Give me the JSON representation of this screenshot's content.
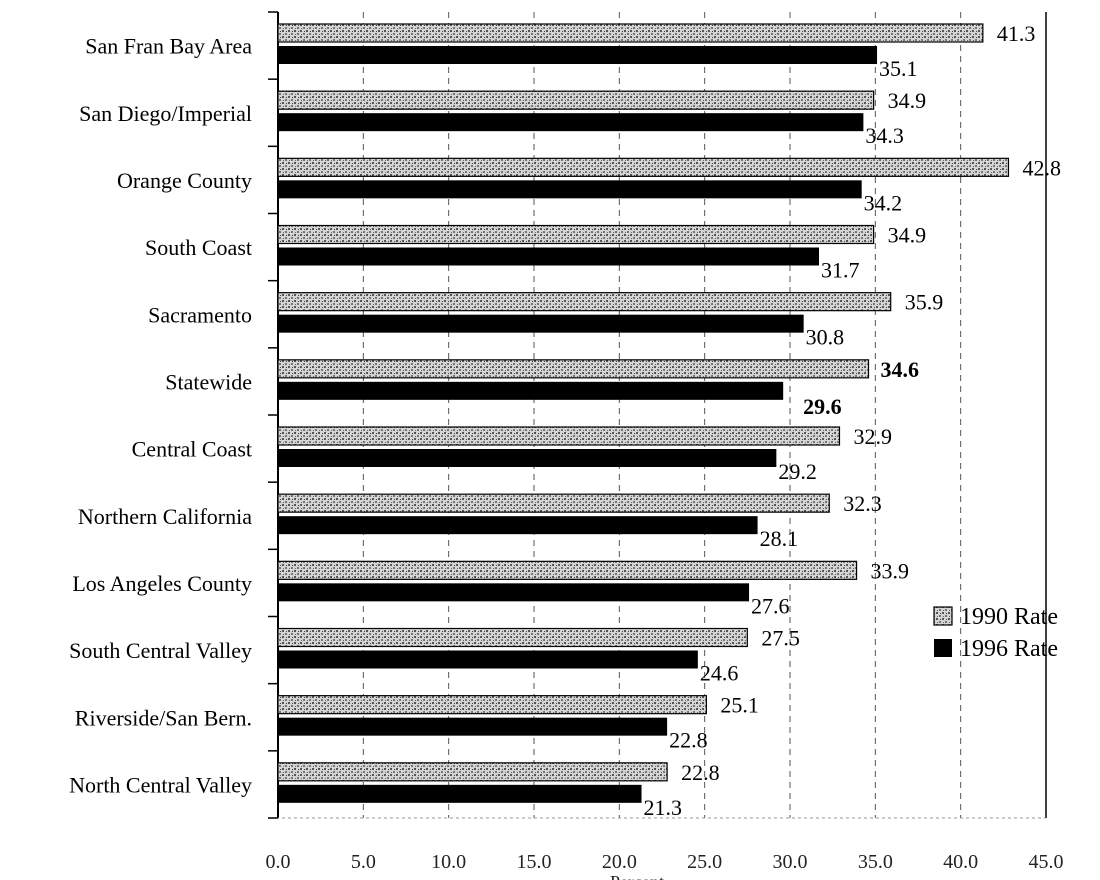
{
  "chart_data": {
    "type": "bar",
    "orientation": "horizontal",
    "title": "",
    "xlabel": "Percent",
    "ylabel": "",
    "xlim": [
      0,
      45
    ],
    "x_ticks": [
      "0.0",
      "5.0",
      "10.0",
      "15.0",
      "20.0",
      "25.0",
      "30.0",
      "35.0",
      "40.0",
      "45.0"
    ],
    "grid": "vertical dashed",
    "legend_position": "right",
    "categories": [
      "San Fran Bay Area",
      "San Diego/Imperial",
      "Orange County",
      "South Coast",
      "Sacramento",
      "Statewide",
      "Central Coast",
      "Northern California",
      "Los Angeles County",
      "South Central Valley",
      "Riverside/San Bern.",
      "North Central Valley"
    ],
    "series": [
      {
        "name": "1990  Rate",
        "color": "#b8b8b8",
        "pattern": "stipple",
        "values": [
          41.3,
          34.9,
          42.8,
          34.9,
          35.9,
          34.6,
          32.9,
          32.3,
          33.9,
          27.5,
          25.1,
          22.8
        ],
        "labels": [
          "41.3",
          "34.9",
          "42.8",
          "34.9",
          "35.9",
          "34.6",
          "32.9",
          "32.3",
          "33.9",
          "27.5",
          "25.1",
          "22.8"
        ]
      },
      {
        "name": "1996 Rate",
        "color": "#000000",
        "pattern": "solid",
        "values": [
          35.1,
          34.3,
          34.2,
          31.7,
          30.8,
          29.6,
          29.2,
          28.1,
          27.6,
          24.6,
          22.8,
          21.3
        ],
        "labels": [
          "35.1",
          "34.3",
          "34.2",
          "31.7",
          "30.8",
          "29.6",
          "29.2",
          "28.1",
          "27.6",
          "24.6",
          "22.8",
          "21.3"
        ]
      }
    ],
    "bold_category": "Statewide"
  }
}
